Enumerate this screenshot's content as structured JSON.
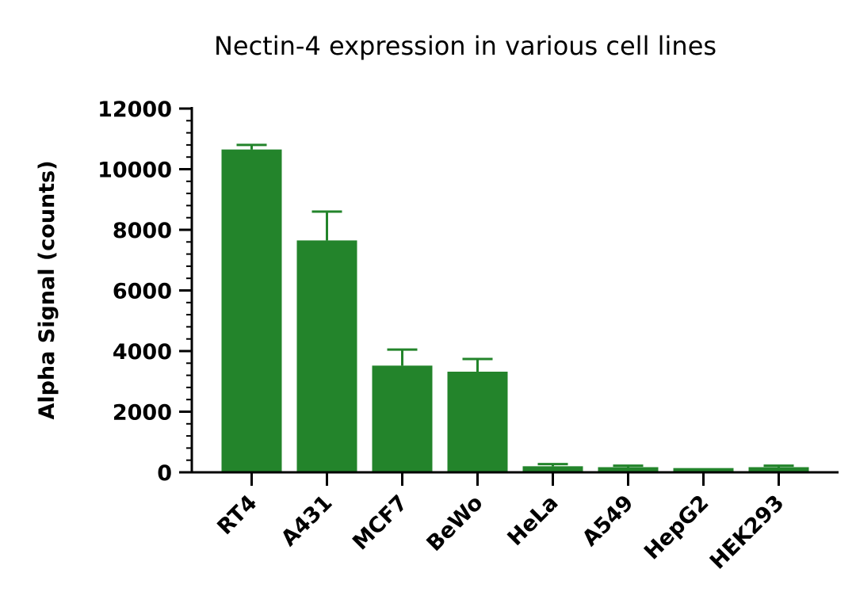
{
  "colors": {
    "bar": "#23842b",
    "axis": "#000000",
    "background": "#ffffff"
  },
  "chart_data": {
    "type": "bar",
    "title": "Nectin-4 expression in various cell lines",
    "xlabel": "",
    "ylabel": "Alpha Signal (counts)",
    "ylim": [
      0,
      12000
    ],
    "y_ticks": [
      0,
      2000,
      4000,
      6000,
      8000,
      10000,
      12000
    ],
    "y_tick_labels": [
      "0",
      "2000",
      "4000",
      "6000",
      "8000",
      "10000",
      "12000"
    ],
    "y_minor_step": 400,
    "grid": false,
    "legend": "none",
    "categories": [
      "RT4",
      "A431",
      "MCF7",
      "BeWo",
      "HeLa",
      "A549",
      "HepG2",
      "HEK293"
    ],
    "values": [
      10650,
      7650,
      3520,
      3320,
      200,
      170,
      140,
      170
    ],
    "error": [
      150,
      950,
      530,
      420,
      70,
      50,
      0,
      50
    ]
  }
}
